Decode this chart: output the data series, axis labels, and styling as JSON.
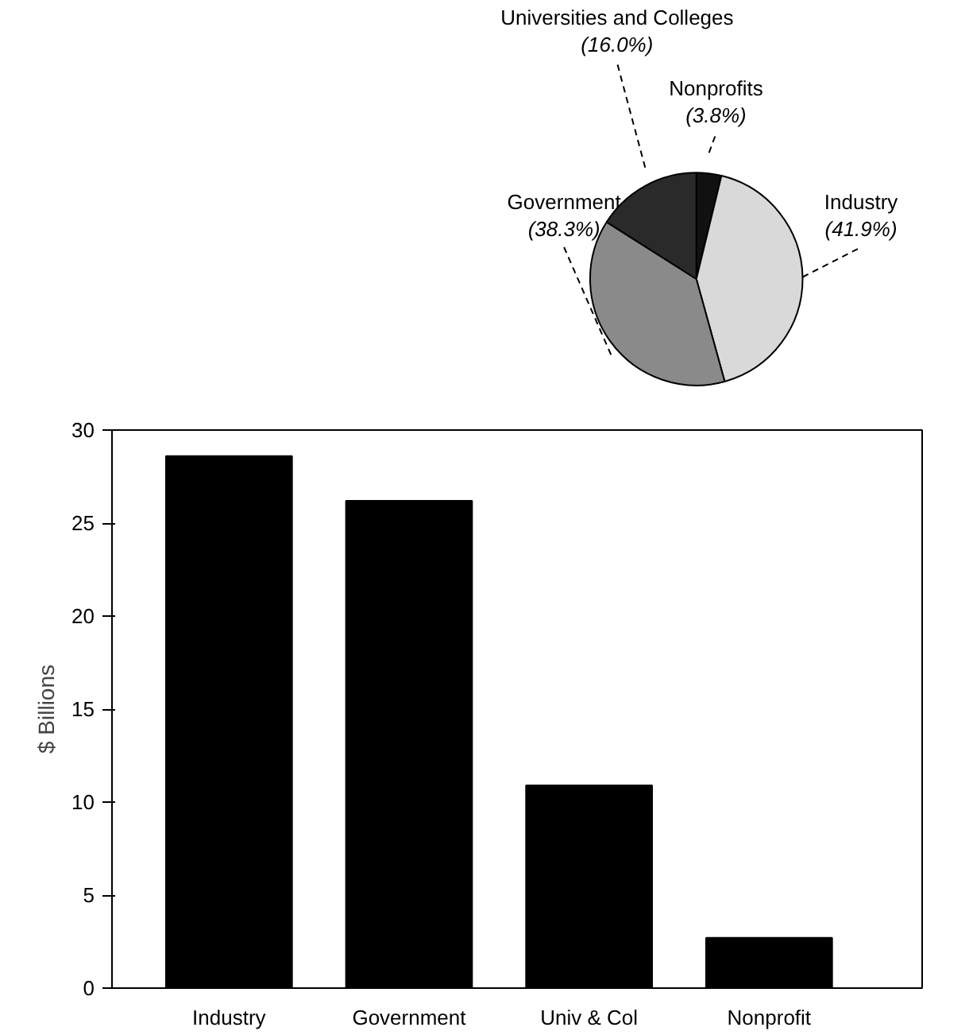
{
  "chart_data": [
    {
      "type": "pie",
      "categories": [
        "Nonprofits",
        "Industry",
        "Government",
        "Universities and Colleges"
      ],
      "values": [
        3.8,
        41.9,
        38.3,
        16.0
      ],
      "colors": [
        "#111111",
        "#d9d9d9",
        "#8a8a8a",
        "#2a2a2a"
      ],
      "value_labels": [
        "(3.8%)",
        "(41.9%)",
        "(38.3%)",
        "(16.0%)"
      ]
    },
    {
      "type": "bar",
      "categories": [
        "Industry",
        "Government",
        "Univ & Col",
        "Nonprofit"
      ],
      "values": [
        28.6,
        26.2,
        10.9,
        2.7
      ],
      "color": "#000000",
      "ylabel": "$ Billions",
      "ylim": [
        0,
        30
      ],
      "yticks": [
        0,
        5,
        10,
        15,
        20,
        25,
        30
      ],
      "grid": false
    }
  ]
}
